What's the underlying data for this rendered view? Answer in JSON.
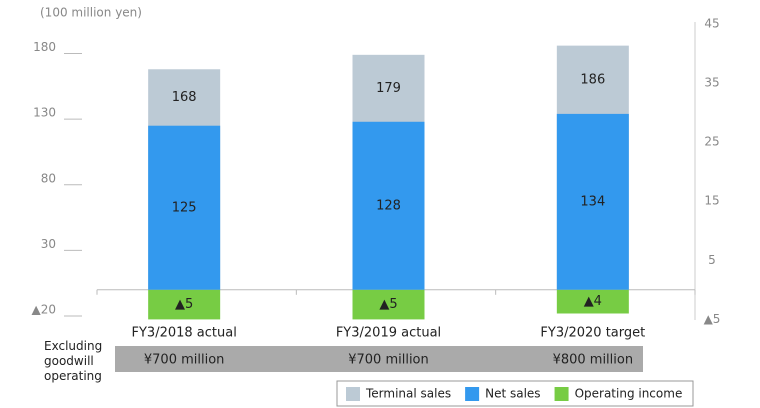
{
  "chart_data": {
    "type": "bar",
    "stacked": false,
    "unit_label": "(100 million yen)",
    "categories": [
      "FY3/2018 actual",
      "FY3/2019 actual",
      "FY3/2020 target"
    ],
    "series": [
      {
        "name": "Terminal sales",
        "color": "#bccad5",
        "values": [
          168,
          179,
          186
        ]
      },
      {
        "name": "Net sales",
        "color": "#3399ee",
        "values": [
          125,
          128,
          134
        ]
      },
      {
        "name": "Operating income",
        "color": "#77cc44",
        "axis": "y2",
        "values": [
          -5,
          -5,
          -4
        ],
        "value_labels": [
          "▲5",
          "▲5",
          "▲4"
        ]
      }
    ],
    "ylim": [
      -23,
      204
    ],
    "yticks": [
      {
        "value": -20,
        "label": "▲20"
      },
      30,
      80,
      130,
      180
    ],
    "y2lim": [
      -5.1,
      45.3
    ],
    "y2ticks": [
      {
        "value": -5,
        "label": "▲5"
      },
      5,
      15,
      25,
      35,
      45
    ],
    "footer_row": {
      "label": "Excluding goodwill operating",
      "values": [
        "¥700 million",
        "¥700 million",
        "¥800 million"
      ]
    },
    "legend": "bottom-right"
  }
}
